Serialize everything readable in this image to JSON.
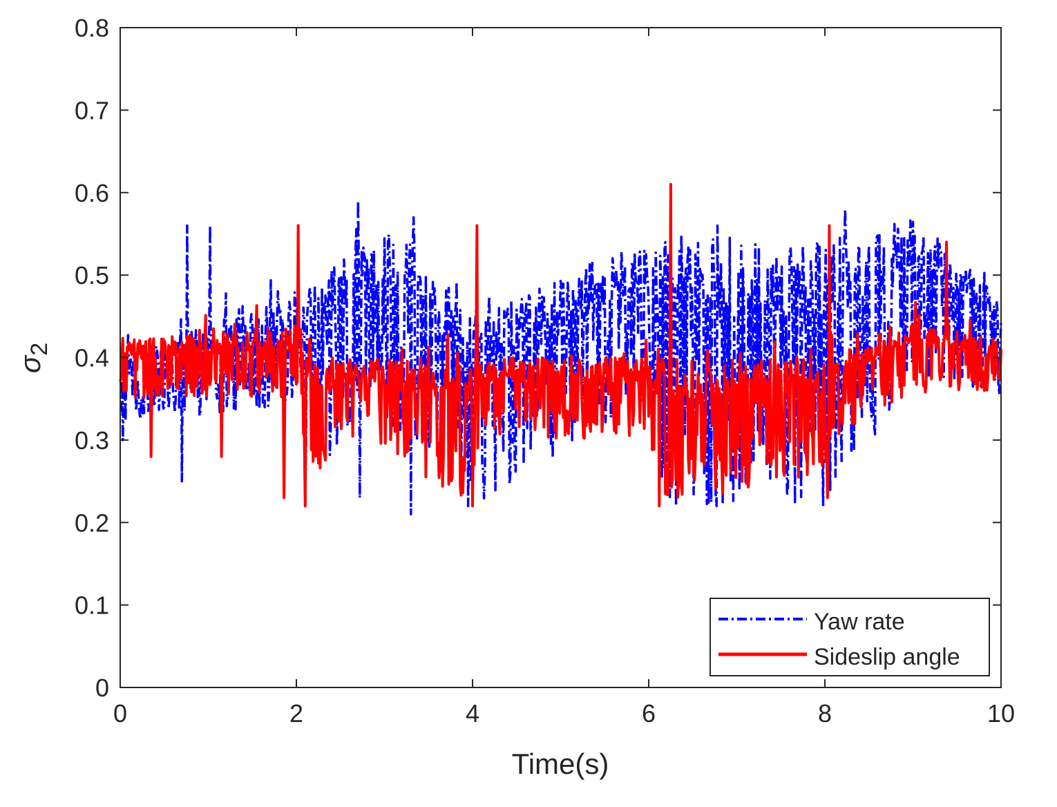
{
  "chart_data": {
    "type": "line",
    "title": "",
    "xlabel": "Time(s)",
    "ylabel_base": "σ",
    "ylabel_sub": "2",
    "xlim": [
      0,
      10
    ],
    "ylim": [
      0,
      0.8
    ],
    "xticks": [
      0,
      2,
      4,
      6,
      8,
      10
    ],
    "xtick_labels": [
      "0",
      "2",
      "4",
      "6",
      "8",
      "10"
    ],
    "yticks": [
      0,
      0.1,
      0.2,
      0.3,
      0.4,
      0.5,
      0.6,
      0.7,
      0.8
    ],
    "ytick_labels": [
      "0",
      "0.1",
      "0.2",
      "0.3",
      "0.4",
      "0.5",
      "0.6",
      "0.7",
      "0.8"
    ],
    "grid": false,
    "legend_position": "bottom-right",
    "sample_count": 1000,
    "series": [
      {
        "name": "Yaw rate",
        "color": "#0000ff",
        "style": "dash-dot",
        "base": 0.41,
        "amplitude": 0.075,
        "envelope": [
          [
            0,
            0.4,
            0.32
          ],
          [
            2,
            0.48,
            0.34
          ],
          [
            2.1,
            0.48,
            0.22
          ],
          [
            2.7,
            0.54,
            0.34
          ],
          [
            3.3,
            0.55,
            0.3
          ],
          [
            4,
            0.45,
            0.22
          ],
          [
            6,
            0.55,
            0.34
          ],
          [
            6.1,
            0.55,
            0.22
          ],
          [
            8,
            0.54,
            0.22
          ],
          [
            9,
            0.57,
            0.37
          ],
          [
            10,
            0.47,
            0.36
          ]
        ],
        "spikes": [
          [
            0.03,
            0.3
          ],
          [
            0.7,
            0.25
          ],
          [
            0.76,
            0.56
          ],
          [
            1.02,
            0.56
          ],
          [
            2.1,
            0.22
          ],
          [
            2.7,
            0.59
          ],
          [
            2.72,
            0.23
          ],
          [
            3.3,
            0.21
          ],
          [
            3.33,
            0.57
          ],
          [
            3.95,
            0.22
          ],
          [
            6.12,
            0.22
          ],
          [
            6.77,
            0.22
          ],
          [
            6.78,
            0.56
          ],
          [
            7.98,
            0.22
          ],
          [
            8.23,
            0.58
          ]
        ]
      },
      {
        "name": "Sideslip angle",
        "color": "#ff0000",
        "style": "solid",
        "base": 0.4,
        "amplitude": 0.07,
        "envelope": [
          [
            0,
            0.42,
            0.35
          ],
          [
            2,
            0.44,
            0.35
          ],
          [
            2.2,
            0.4,
            0.22
          ],
          [
            2.6,
            0.4,
            0.3
          ],
          [
            4,
            0.4,
            0.22
          ],
          [
            4.1,
            0.4,
            0.3
          ],
          [
            6,
            0.4,
            0.3
          ],
          [
            6.15,
            0.4,
            0.22
          ],
          [
            8,
            0.4,
            0.26
          ],
          [
            8.1,
            0.4,
            0.3
          ],
          [
            9,
            0.44,
            0.36
          ],
          [
            10,
            0.42,
            0.36
          ]
        ],
        "spikes": [
          [
            0.35,
            0.28
          ],
          [
            1.15,
            0.28
          ],
          [
            1.86,
            0.23
          ],
          [
            2.02,
            0.56
          ],
          [
            2.1,
            0.22
          ],
          [
            4.05,
            0.56
          ],
          [
            4.0,
            0.22
          ],
          [
            6.12,
            0.22
          ],
          [
            6.25,
            0.61
          ],
          [
            8.05,
            0.56
          ],
          [
            8.03,
            0.23
          ],
          [
            9.38,
            0.54
          ]
        ]
      }
    ]
  }
}
